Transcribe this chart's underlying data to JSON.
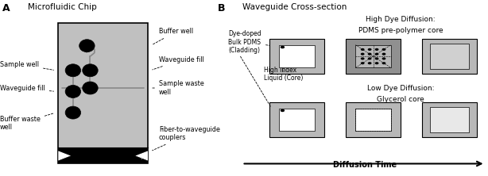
{
  "bg_color": "#ffffff",
  "gray_chip": "#c0c0c0",
  "gray_cladding": "#b8b8b8",
  "gray_dark_cladding": "#909090",
  "gray_core_diffused": "#d0d0d0",
  "gray_core_light": "#e8e8e8",
  "black": "#000000",
  "white": "#ffffff",
  "panel_a_title": "Microfluidic Chip",
  "panel_b_title": "Waveguide Cross-section",
  "panel_a_label": "A",
  "panel_b_label": "B",
  "high_dye_title": "High Dye Diffusion:",
  "high_dye_sub": "PDMS pre-polymer core",
  "low_dye_title": "Low Dye Diffusion:",
  "low_dye_sub": "Glycerol core",
  "diffusion_time": "Diffusion Time",
  "cladding_label": "Dye-doped\nBulk PDMS\n(Cladding)",
  "core_label": "High Index\nLiquid (Core)"
}
